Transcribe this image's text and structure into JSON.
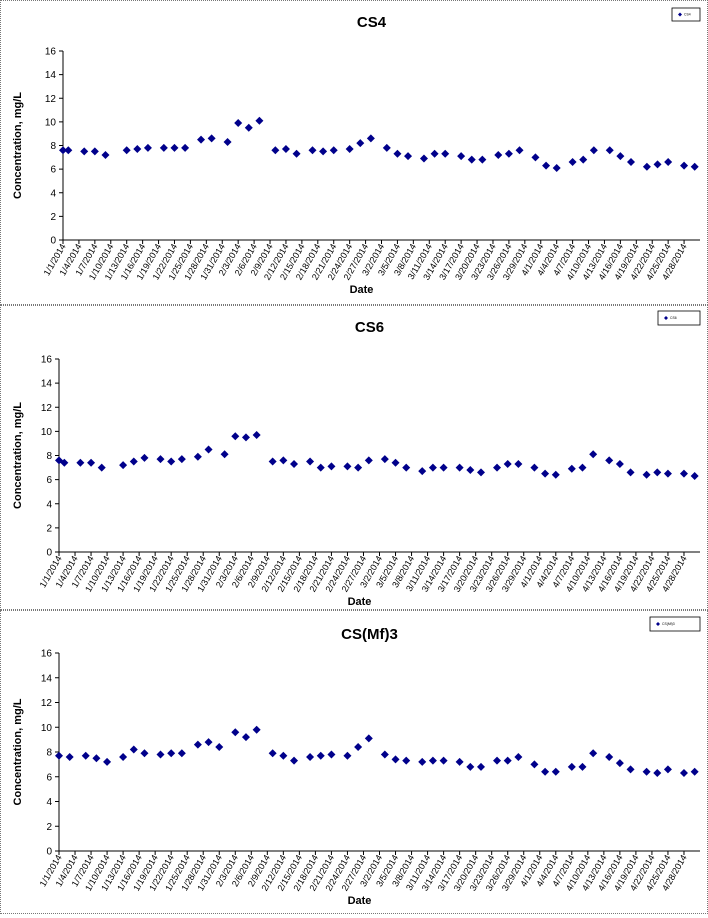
{
  "charts": [
    {
      "title": "CS4",
      "legend_label": "CS4",
      "ylabel": "Concentration, mg/L",
      "xlabel": "Date",
      "x_tick_labels": [
        "1/1/2014",
        "1/4/2014",
        "1/7/2014",
        "1/10/2014",
        "1/13/2014",
        "1/16/2014",
        "1/19/2014",
        "1/22/2014",
        "1/25/2014",
        "1/28/2014",
        "1/31/2014",
        "2/3/2014",
        "2/6/2014",
        "2/9/2014",
        "2/12/2014",
        "2/15/2014",
        "2/18/2014",
        "2/21/2014",
        "2/24/2014",
        "2/27/2014",
        "3/2/2014",
        "3/5/2014",
        "3/8/2014",
        "3/11/2014",
        "3/14/2014",
        "3/17/2014",
        "3/20/2014",
        "3/23/2014",
        "3/26/2014",
        "3/29/2014",
        "4/1/2014",
        "4/4/2014",
        "4/7/2014",
        "4/10/2014",
        "4/13/2014",
        "4/16/2014",
        "4/19/2014",
        "4/22/2014",
        "4/25/2014",
        "4/28/2014"
      ],
      "y_tick_labels": [
        "0",
        "2",
        "4",
        "6",
        "8",
        "10",
        "12",
        "14",
        "16"
      ]
    },
    {
      "title": "CS6",
      "legend_label": "CS6",
      "ylabel": "Concentration, mg/L",
      "xlabel": "Date",
      "x_tick_labels": [
        "1/1/2014",
        "1/4/2014",
        "1/7/2014",
        "1/10/2014",
        "1/13/2014",
        "1/16/2014",
        "1/19/2014",
        "1/22/2014",
        "1/25/2014",
        "1/28/2014",
        "1/31/2014",
        "2/3/2014",
        "2/6/2014",
        "2/9/2014",
        "2/12/2014",
        "2/15/2014",
        "2/18/2014",
        "2/21/2014",
        "2/24/2014",
        "2/27/2014",
        "3/2/2014",
        "3/5/2014",
        "3/8/2014",
        "3/11/2014",
        "3/14/2014",
        "3/17/2014",
        "3/20/2014",
        "3/23/2014",
        "3/26/2014",
        "3/29/2014",
        "4/1/2014",
        "4/4/2014",
        "4/7/2014",
        "4/10/2014",
        "4/13/2014",
        "4/16/2014",
        "4/19/2014",
        "4/22/2014",
        "4/25/2014",
        "4/28/2014"
      ],
      "y_tick_labels": [
        "0",
        "2",
        "4",
        "6",
        "8",
        "10",
        "12",
        "14",
        "16"
      ]
    },
    {
      "title": "CS(Mf)3",
      "legend_label": "CS(Mf)3",
      "ylabel": "Concentration, mg/L",
      "xlabel": "Date",
      "x_tick_labels": [
        "1/1/2014",
        "1/4/2014",
        "1/7/2014",
        "1/10/2014",
        "1/13/2014",
        "1/16/2014",
        "1/19/2014",
        "1/22/2014",
        "1/25/2014",
        "1/28/2014",
        "1/31/2014",
        "2/3/2014",
        "2/6/2014",
        "2/9/2014",
        "2/12/2014",
        "2/15/2014",
        "2/18/2014",
        "2/21/2014",
        "2/24/2014",
        "2/27/2014",
        "3/2/2014",
        "3/5/2014",
        "3/8/2014",
        "3/11/2014",
        "3/14/2014",
        "3/17/2014",
        "3/20/2014",
        "3/23/2014",
        "3/26/2014",
        "3/29/2014",
        "4/1/2014",
        "4/4/2014",
        "4/7/2014",
        "4/10/2014",
        "4/13/2014",
        "4/16/2014",
        "4/19/2014",
        "4/22/2014",
        "4/25/2014",
        "4/28/2014"
      ],
      "y_tick_labels": [
        "0",
        "2",
        "4",
        "6",
        "8",
        "10",
        "12",
        "14",
        "16"
      ]
    }
  ],
  "chart_data": [
    {
      "type": "scatter",
      "title": "CS4",
      "xlabel": "Date",
      "ylabel": "Concentration, mg/L",
      "ylim": [
        0,
        16
      ],
      "xlim": [
        "1/1/2014",
        "4/30/2014"
      ],
      "grid": false,
      "legend_position": "top-right",
      "marker_color": "#00008B",
      "marker": "diamond",
      "series": [
        {
          "name": "CS4",
          "points": [
            {
              "x": "1/1/2014",
              "y": 7.6
            },
            {
              "x": "1/2/2014",
              "y": 7.6
            },
            {
              "x": "1/5/2014",
              "y": 7.5
            },
            {
              "x": "1/7/2014",
              "y": 7.5
            },
            {
              "x": "1/9/2014",
              "y": 7.2
            },
            {
              "x": "1/13/2014",
              "y": 7.6
            },
            {
              "x": "1/15/2014",
              "y": 7.7
            },
            {
              "x": "1/17/2014",
              "y": 7.8
            },
            {
              "x": "1/20/2014",
              "y": 7.8
            },
            {
              "x": "1/22/2014",
              "y": 7.8
            },
            {
              "x": "1/24/2014",
              "y": 7.8
            },
            {
              "x": "1/27/2014",
              "y": 8.5
            },
            {
              "x": "1/29/2014",
              "y": 8.6
            },
            {
              "x": "2/1/2014",
              "y": 8.3
            },
            {
              "x": "2/3/2014",
              "y": 9.9
            },
            {
              "x": "2/5/2014",
              "y": 9.5
            },
            {
              "x": "2/7/2014",
              "y": 10.1
            },
            {
              "x": "2/10/2014",
              "y": 7.6
            },
            {
              "x": "2/12/2014",
              "y": 7.7
            },
            {
              "x": "2/14/2014",
              "y": 7.3
            },
            {
              "x": "2/17/2014",
              "y": 7.6
            },
            {
              "x": "2/19/2014",
              "y": 7.5
            },
            {
              "x": "2/21/2014",
              "y": 7.6
            },
            {
              "x": "2/24/2014",
              "y": 7.7
            },
            {
              "x": "2/26/2014",
              "y": 8.2
            },
            {
              "x": "2/28/2014",
              "y": 8.6
            },
            {
              "x": "3/3/2014",
              "y": 7.8
            },
            {
              "x": "3/5/2014",
              "y": 7.3
            },
            {
              "x": "3/7/2014",
              "y": 7.1
            },
            {
              "x": "3/10/2014",
              "y": 6.9
            },
            {
              "x": "3/12/2014",
              "y": 7.3
            },
            {
              "x": "3/14/2014",
              "y": 7.3
            },
            {
              "x": "3/17/2014",
              "y": 7.1
            },
            {
              "x": "3/19/2014",
              "y": 6.8
            },
            {
              "x": "3/21/2014",
              "y": 6.8
            },
            {
              "x": "3/24/2014",
              "y": 7.2
            },
            {
              "x": "3/26/2014",
              "y": 7.3
            },
            {
              "x": "3/28/2014",
              "y": 7.6
            },
            {
              "x": "3/31/2014",
              "y": 7.0
            },
            {
              "x": "4/2/2014",
              "y": 6.3
            },
            {
              "x": "4/4/2014",
              "y": 6.1
            },
            {
              "x": "4/7/2014",
              "y": 6.6
            },
            {
              "x": "4/9/2014",
              "y": 6.8
            },
            {
              "x": "4/11/2014",
              "y": 7.6
            },
            {
              "x": "4/14/2014",
              "y": 7.6
            },
            {
              "x": "4/16/2014",
              "y": 7.1
            },
            {
              "x": "4/18/2014",
              "y": 6.6
            },
            {
              "x": "4/21/2014",
              "y": 6.2
            },
            {
              "x": "4/23/2014",
              "y": 6.4
            },
            {
              "x": "4/25/2014",
              "y": 6.6
            },
            {
              "x": "4/28/2014",
              "y": 6.3
            },
            {
              "x": "4/30/2014",
              "y": 6.2
            }
          ]
        }
      ]
    },
    {
      "type": "scatter",
      "title": "CS6",
      "xlabel": "Date",
      "ylabel": "Concentration, mg/L",
      "ylim": [
        0,
        16
      ],
      "xlim": [
        "1/1/2014",
        "4/30/2014"
      ],
      "grid": false,
      "legend_position": "top-right",
      "marker_color": "#00008B",
      "marker": "diamond",
      "series": [
        {
          "name": "CS6",
          "points": [
            {
              "x": "1/1/2014",
              "y": 7.6
            },
            {
              "x": "1/2/2014",
              "y": 7.4
            },
            {
              "x": "1/5/2014",
              "y": 7.4
            },
            {
              "x": "1/7/2014",
              "y": 7.4
            },
            {
              "x": "1/9/2014",
              "y": 7.0
            },
            {
              "x": "1/13/2014",
              "y": 7.2
            },
            {
              "x": "1/15/2014",
              "y": 7.5
            },
            {
              "x": "1/17/2014",
              "y": 7.8
            },
            {
              "x": "1/20/2014",
              "y": 7.7
            },
            {
              "x": "1/22/2014",
              "y": 7.5
            },
            {
              "x": "1/24/2014",
              "y": 7.7
            },
            {
              "x": "1/27/2014",
              "y": 7.9
            },
            {
              "x": "1/29/2014",
              "y": 8.5
            },
            {
              "x": "2/1/2014",
              "y": 8.1
            },
            {
              "x": "2/3/2014",
              "y": 9.6
            },
            {
              "x": "2/5/2014",
              "y": 9.5
            },
            {
              "x": "2/7/2014",
              "y": 9.7
            },
            {
              "x": "2/10/2014",
              "y": 7.5
            },
            {
              "x": "2/12/2014",
              "y": 7.6
            },
            {
              "x": "2/14/2014",
              "y": 7.3
            },
            {
              "x": "2/17/2014",
              "y": 7.5
            },
            {
              "x": "2/19/2014",
              "y": 7.0
            },
            {
              "x": "2/21/2014",
              "y": 7.1
            },
            {
              "x": "2/24/2014",
              "y": 7.1
            },
            {
              "x": "2/26/2014",
              "y": 7.0
            },
            {
              "x": "2/28/2014",
              "y": 7.6
            },
            {
              "x": "3/3/2014",
              "y": 7.7
            },
            {
              "x": "3/5/2014",
              "y": 7.4
            },
            {
              "x": "3/7/2014",
              "y": 7.0
            },
            {
              "x": "3/10/2014",
              "y": 6.7
            },
            {
              "x": "3/12/2014",
              "y": 7.0
            },
            {
              "x": "3/14/2014",
              "y": 7.0
            },
            {
              "x": "3/17/2014",
              "y": 7.0
            },
            {
              "x": "3/19/2014",
              "y": 6.8
            },
            {
              "x": "3/21/2014",
              "y": 6.6
            },
            {
              "x": "3/24/2014",
              "y": 7.0
            },
            {
              "x": "3/26/2014",
              "y": 7.3
            },
            {
              "x": "3/28/2014",
              "y": 7.3
            },
            {
              "x": "3/31/2014",
              "y": 7.0
            },
            {
              "x": "4/2/2014",
              "y": 6.5
            },
            {
              "x": "4/4/2014",
              "y": 6.4
            },
            {
              "x": "4/7/2014",
              "y": 6.9
            },
            {
              "x": "4/9/2014",
              "y": 7.0
            },
            {
              "x": "4/11/2014",
              "y": 8.1
            },
            {
              "x": "4/14/2014",
              "y": 7.6
            },
            {
              "x": "4/16/2014",
              "y": 7.3
            },
            {
              "x": "4/18/2014",
              "y": 6.6
            },
            {
              "x": "4/21/2014",
              "y": 6.4
            },
            {
              "x": "4/23/2014",
              "y": 6.6
            },
            {
              "x": "4/25/2014",
              "y": 6.5
            },
            {
              "x": "4/28/2014",
              "y": 6.5
            },
            {
              "x": "4/30/2014",
              "y": 6.3
            }
          ]
        }
      ]
    },
    {
      "type": "scatter",
      "title": "CS(Mf)3",
      "xlabel": "Date",
      "ylabel": "Concentration, mg/L",
      "ylim": [
        0,
        16
      ],
      "xlim": [
        "1/1/2014",
        "4/30/2014"
      ],
      "grid": false,
      "legend_position": "top-right",
      "marker_color": "#00008B",
      "marker": "diamond",
      "series": [
        {
          "name": "CS(Mf)3",
          "points": [
            {
              "x": "1/1/2014",
              "y": 7.7
            },
            {
              "x": "1/3/2014",
              "y": 7.6
            },
            {
              "x": "1/6/2014",
              "y": 7.7
            },
            {
              "x": "1/8/2014",
              "y": 7.5
            },
            {
              "x": "1/10/2014",
              "y": 7.2
            },
            {
              "x": "1/13/2014",
              "y": 7.6
            },
            {
              "x": "1/15/2014",
              "y": 8.2
            },
            {
              "x": "1/17/2014",
              "y": 7.9
            },
            {
              "x": "1/20/2014",
              "y": 7.8
            },
            {
              "x": "1/22/2014",
              "y": 7.9
            },
            {
              "x": "1/24/2014",
              "y": 7.9
            },
            {
              "x": "1/27/2014",
              "y": 8.6
            },
            {
              "x": "1/29/2014",
              "y": 8.8
            },
            {
              "x": "1/31/2014",
              "y": 8.4
            },
            {
              "x": "2/3/2014",
              "y": 9.6
            },
            {
              "x": "2/5/2014",
              "y": 9.2
            },
            {
              "x": "2/7/2014",
              "y": 9.8
            },
            {
              "x": "2/10/2014",
              "y": 7.9
            },
            {
              "x": "2/12/2014",
              "y": 7.7
            },
            {
              "x": "2/14/2014",
              "y": 7.3
            },
            {
              "x": "2/17/2014",
              "y": 7.6
            },
            {
              "x": "2/19/2014",
              "y": 7.7
            },
            {
              "x": "2/21/2014",
              "y": 7.8
            },
            {
              "x": "2/24/2014",
              "y": 7.7
            },
            {
              "x": "2/26/2014",
              "y": 8.4
            },
            {
              "x": "2/28/2014",
              "y": 9.1
            },
            {
              "x": "3/3/2014",
              "y": 7.8
            },
            {
              "x": "3/5/2014",
              "y": 7.4
            },
            {
              "x": "3/7/2014",
              "y": 7.3
            },
            {
              "x": "3/10/2014",
              "y": 7.2
            },
            {
              "x": "3/12/2014",
              "y": 7.3
            },
            {
              "x": "3/14/2014",
              "y": 7.3
            },
            {
              "x": "3/17/2014",
              "y": 7.2
            },
            {
              "x": "3/19/2014",
              "y": 6.8
            },
            {
              "x": "3/21/2014",
              "y": 6.8
            },
            {
              "x": "3/24/2014",
              "y": 7.3
            },
            {
              "x": "3/26/2014",
              "y": 7.3
            },
            {
              "x": "3/28/2014",
              "y": 7.6
            },
            {
              "x": "3/31/2014",
              "y": 7.0
            },
            {
              "x": "4/2/2014",
              "y": 6.4
            },
            {
              "x": "4/4/2014",
              "y": 6.4
            },
            {
              "x": "4/7/2014",
              "y": 6.8
            },
            {
              "x": "4/9/2014",
              "y": 6.8
            },
            {
              "x": "4/11/2014",
              "y": 7.9
            },
            {
              "x": "4/14/2014",
              "y": 7.6
            },
            {
              "x": "4/16/2014",
              "y": 7.1
            },
            {
              "x": "4/18/2014",
              "y": 6.6
            },
            {
              "x": "4/21/2014",
              "y": 6.4
            },
            {
              "x": "4/23/2014",
              "y": 6.3
            },
            {
              "x": "4/25/2014",
              "y": 6.6
            },
            {
              "x": "4/28/2014",
              "y": 6.3
            },
            {
              "x": "4/30/2014",
              "y": 6.4
            }
          ]
        }
      ]
    }
  ]
}
